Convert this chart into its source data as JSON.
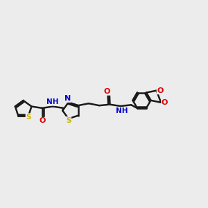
{
  "background_color": "#ececec",
  "bond_color": "#1a1a1a",
  "atom_colors": {
    "S": "#c8b400",
    "N": "#0000cc",
    "O": "#dd0000",
    "C": "#1a1a1a"
  },
  "figsize": [
    3.0,
    3.0
  ],
  "dpi": 100,
  "xlim": [
    0,
    10
  ],
  "ylim": [
    2,
    8
  ]
}
